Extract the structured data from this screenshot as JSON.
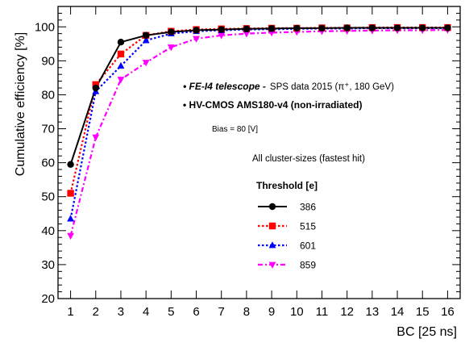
{
  "chart_data": {
    "type": "line",
    "xlabel": "BC [25 ns]",
    "ylabel": "Cumulative efficiency [%]",
    "xlim": [
      0.5,
      16.5
    ],
    "ylim": [
      20,
      106
    ],
    "x": [
      1,
      2,
      3,
      4,
      5,
      6,
      7,
      8,
      9,
      10,
      11,
      12,
      13,
      14,
      15,
      16
    ],
    "x_ticks": [
      "1",
      "2",
      "3",
      "4",
      "5",
      "6",
      "7",
      "8",
      "9",
      "10",
      "11",
      "12",
      "13",
      "14",
      "15",
      "16"
    ],
    "y_ticks": [
      20,
      30,
      40,
      50,
      60,
      70,
      80,
      90,
      100
    ],
    "grid": false,
    "annotations": {
      "line1_bold": "FE-I4 telescope -",
      "line1_rest": "SPS data 2015 (π⁺, 180 GeV)",
      "line2": "HV-CMOS AMS180-v4 (non-irradiated)",
      "line3": "Bias = 80 [V]",
      "line4": "All cluster-sizes (fastest hit)"
    },
    "legend": {
      "title": "Threshold [e]",
      "placement": "center-right"
    },
    "series": [
      {
        "name": "386",
        "color": "#000000",
        "marker": "circle",
        "dash": "solid",
        "values": [
          59.5,
          82.0,
          95.5,
          97.5,
          98.5,
          99.0,
          99.2,
          99.4,
          99.5,
          99.6,
          99.6,
          99.7,
          99.7,
          99.7,
          99.7,
          99.7
        ]
      },
      {
        "name": "515",
        "color": "#ff0000",
        "marker": "square",
        "dash": "dotted",
        "values": [
          51.0,
          83.0,
          92.0,
          97.5,
          98.7,
          99.2,
          99.4,
          99.5,
          99.6,
          99.6,
          99.7,
          99.7,
          99.8,
          99.8,
          99.8,
          99.8
        ]
      },
      {
        "name": "601",
        "color": "#0000ff",
        "marker": "triangle-up",
        "dash": "dotted",
        "values": [
          43.5,
          81.0,
          88.5,
          96.0,
          98.0,
          98.7,
          99.0,
          99.2,
          99.3,
          99.4,
          99.5,
          99.5,
          99.6,
          99.6,
          99.6,
          99.6
        ]
      },
      {
        "name": "859",
        "color": "#ff00ff",
        "marker": "triangle-down",
        "dash": "dashdot",
        "values": [
          38.5,
          67.5,
          84.5,
          89.5,
          94.0,
          96.5,
          97.5,
          98.0,
          98.3,
          98.5,
          98.7,
          98.8,
          98.9,
          99.0,
          99.0,
          99.1
        ]
      }
    ]
  }
}
